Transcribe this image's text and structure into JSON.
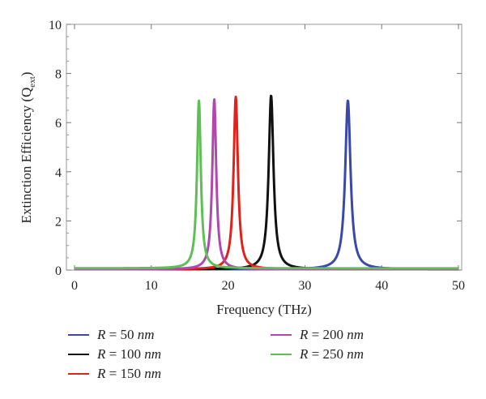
{
  "chart_data": {
    "type": "line",
    "xlabel": "Frequency (THz)",
    "ylabel": {
      "main": "Extinction Efficiency (Q",
      "sub": "ext",
      "close": ")"
    },
    "xlim": [
      0,
      50
    ],
    "ylim": [
      0,
      10
    ],
    "xticks": [
      "0",
      "10",
      "20",
      "30",
      "40",
      "50"
    ],
    "yticks": [
      "0",
      "2",
      "4",
      "6",
      "8",
      "10"
    ],
    "grid": false,
    "legend_position": "bottom",
    "series": [
      {
        "name": "R = 50 nm",
        "symbol": "R",
        "eq": " = 50 ",
        "unit": "nm",
        "color": "#3a49a8",
        "peak_x": 35.6,
        "peak_y": 6.9,
        "hwhm": 0.42,
        "tail": 0.03
      },
      {
        "name": "R = 100 nm",
        "symbol": "R",
        "eq": " = 100 ",
        "unit": "nm",
        "color": "#111111",
        "peak_x": 25.6,
        "peak_y": 7.1,
        "hwhm": 0.38,
        "tail": 0.03
      },
      {
        "name": "R = 150 nm",
        "symbol": "R",
        "eq": " = 150 ",
        "unit": "nm",
        "color": "#e0221b",
        "peak_x": 21.0,
        "peak_y": 7.05,
        "hwhm": 0.34,
        "tail": 0.03
      },
      {
        "name": "R = 200 nm",
        "symbol": "R",
        "eq": " = 200 ",
        "unit": "nm",
        "color": "#b048b0",
        "peak_x": 18.2,
        "peak_y": 6.95,
        "hwhm": 0.31,
        "tail": 0.03
      },
      {
        "name": "R = 250 nm",
        "symbol": "R",
        "eq": " = 250 ",
        "unit": "nm",
        "color": "#5fbf55",
        "peak_x": 16.2,
        "peak_y": 6.9,
        "hwhm": 0.3,
        "tail": 0.07
      }
    ]
  }
}
